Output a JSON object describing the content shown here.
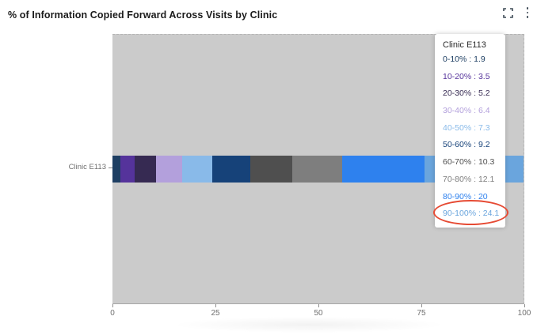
{
  "header": {
    "title": "% of Information Copied Forward Across Visits by Clinic"
  },
  "chart_data": {
    "type": "bar",
    "orientation": "horizontal",
    "stacked": true,
    "title": "% of Information Copied Forward Across Visits by Clinic",
    "categories": [
      "Clinic E113"
    ],
    "series": [
      {
        "name": "0-10%",
        "values": [
          1.9
        ],
        "color": "#1e3f63"
      },
      {
        "name": "10-20%",
        "values": [
          3.5
        ],
        "color": "#55339b"
      },
      {
        "name": "20-30%",
        "values": [
          5.2
        ],
        "color": "#362a52"
      },
      {
        "name": "30-40%",
        "values": [
          6.4
        ],
        "color": "#b3a0dc"
      },
      {
        "name": "40-50%",
        "values": [
          7.3
        ],
        "color": "#89bae9"
      },
      {
        "name": "50-60%",
        "values": [
          9.2
        ],
        "color": "#164279"
      },
      {
        "name": "60-70%",
        "values": [
          10.3
        ],
        "color": "#4f4f4f"
      },
      {
        "name": "70-80%",
        "values": [
          12.1
        ],
        "color": "#7e7e7e"
      },
      {
        "name": "80-90%",
        "values": [
          20
        ],
        "color": "#2e81ee"
      },
      {
        "name": "90-100%",
        "values": [
          24.1
        ],
        "color": "#6aa5dd"
      }
    ],
    "xlabel": "",
    "ylabel": "",
    "xlim": [
      0,
      100
    ],
    "x_ticks": [
      0,
      25,
      50,
      75,
      100
    ],
    "plot_background": "#cbcbcb",
    "legend_position": "none"
  },
  "axes": {
    "x_tick_labels": [
      "0",
      "25",
      "50",
      "75",
      "100"
    ],
    "y_category": "Clinic E113"
  },
  "tooltip": {
    "title": "Clinic E113",
    "separator": " : ",
    "rows": [
      {
        "label": "0-10%",
        "value": "1.9"
      },
      {
        "label": "10-20%",
        "value": "3.5"
      },
      {
        "label": "20-30%",
        "value": "5.2"
      },
      {
        "label": "30-40%",
        "value": "6.4"
      },
      {
        "label": "40-50%",
        "value": "7.3"
      },
      {
        "label": "50-60%",
        "value": "9.2"
      },
      {
        "label": "60-70%",
        "value": "10.3"
      },
      {
        "label": "70-80%",
        "value": "12.1"
      },
      {
        "label": "80-90%",
        "value": "20"
      },
      {
        "label": "90-100%",
        "value": "24.1"
      }
    ]
  },
  "annotation": {
    "type": "ellipse",
    "target_row": "90-100% : 24.1",
    "stroke_color": "#e64a33"
  }
}
